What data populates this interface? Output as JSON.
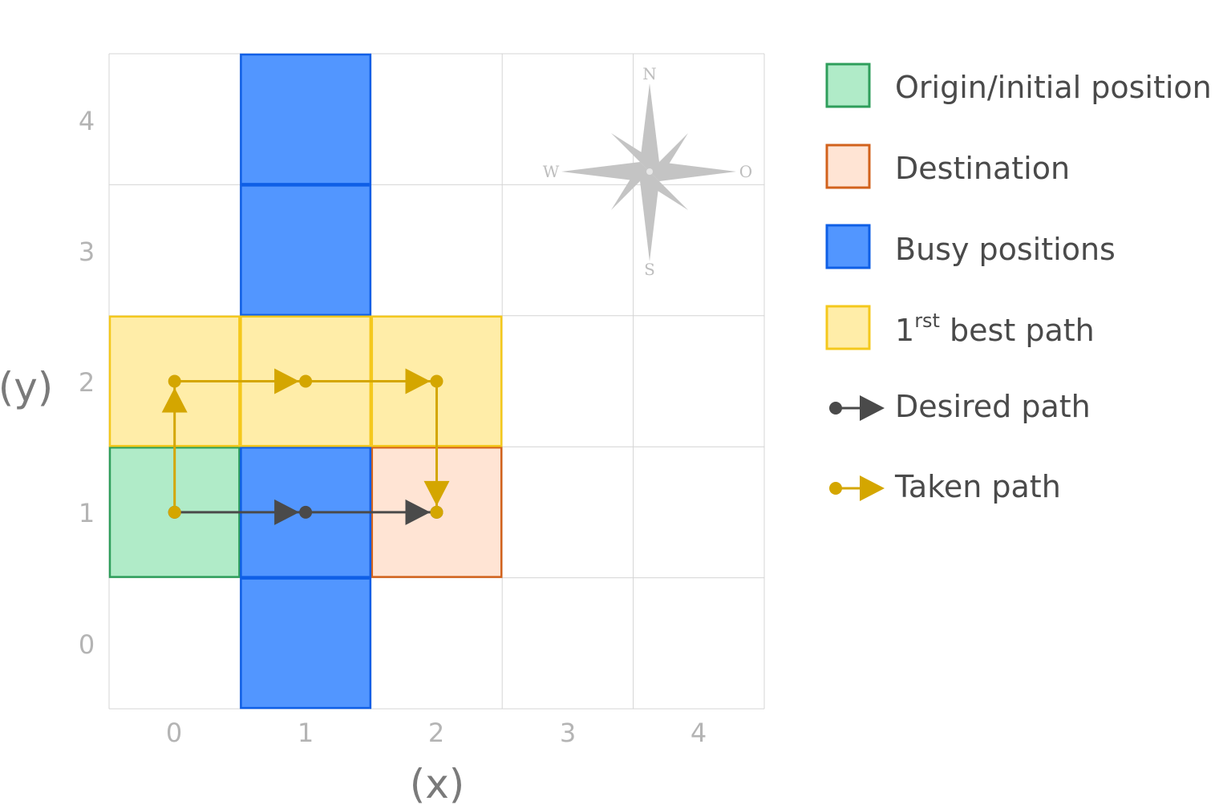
{
  "axes": {
    "x_label": "(x)",
    "y_label": "(y)",
    "x_ticks": [
      "0",
      "1",
      "2",
      "3",
      "4"
    ],
    "y_ticks": [
      "0",
      "1",
      "2",
      "3",
      "4"
    ]
  },
  "grid": {
    "columns": 5,
    "rows": 5
  },
  "cells": {
    "origin": [
      {
        "x": 0,
        "y": 1
      }
    ],
    "destination": [
      {
        "x": 2,
        "y": 1
      }
    ],
    "busy": [
      {
        "x": 1,
        "y": 0
      },
      {
        "x": 1,
        "y": 1
      },
      {
        "x": 1,
        "y": 3
      },
      {
        "x": 1,
        "y": 4
      }
    ],
    "best_path": [
      {
        "x": 0,
        "y": 2
      },
      {
        "x": 1,
        "y": 2
      },
      {
        "x": 2,
        "y": 2
      }
    ]
  },
  "paths": {
    "desired": [
      {
        "x": 0,
        "y": 1
      },
      {
        "x": 1,
        "y": 1
      },
      {
        "x": 2,
        "y": 1
      }
    ],
    "taken": [
      {
        "x": 0,
        "y": 1
      },
      {
        "x": 0,
        "y": 2
      },
      {
        "x": 1,
        "y": 2
      },
      {
        "x": 2,
        "y": 2
      },
      {
        "x": 2,
        "y": 1
      }
    ]
  },
  "compass": {
    "north": "N",
    "south": "S",
    "west": "W",
    "east": "O"
  },
  "legend": {
    "origin": "Origin/initial position",
    "destination": "Destination",
    "busy": "Busy positions",
    "best_path_prefix": "1",
    "best_path_sup": "rst",
    "best_path_suffix": " best path",
    "desired": "Desired path",
    "taken": "Taken path"
  },
  "colors": {
    "origin_fill": "#b0ebc8",
    "origin_stroke": "#2e9e5b",
    "destination_fill": "#ffe4d4",
    "destination_stroke": "#d2621c",
    "busy_fill": "#5296ff",
    "busy_stroke": "#0f5fe6",
    "best_fill": "#ffeda8",
    "best_stroke": "#f4c81c",
    "desired": "#4a4a4a",
    "taken": "#d4a600",
    "grid": "#d4d4d4",
    "compass": "#c4c4c4"
  }
}
